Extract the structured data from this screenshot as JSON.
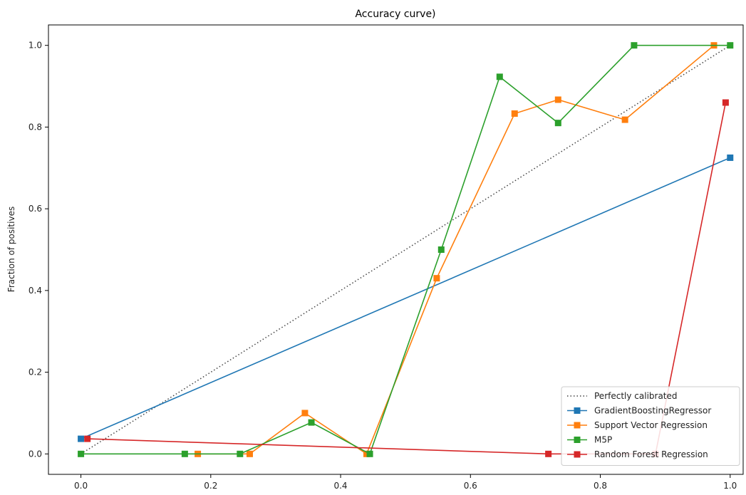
{
  "chart_data": {
    "type": "line",
    "title": "Accuracy curve)",
    "xlabel": "",
    "ylabel": "Fraction of positives",
    "xlim": [
      -0.05,
      1.02
    ],
    "ylim": [
      -0.05,
      1.05
    ],
    "xticks": [
      0.0,
      0.2,
      0.4,
      0.6,
      0.8,
      1.0
    ],
    "xtick_labels": [
      "0.0",
      "0.2",
      "0.4",
      "0.6",
      "0.8",
      "1.0"
    ],
    "yticks": [
      0.0,
      0.2,
      0.4,
      0.6,
      0.8,
      1.0
    ],
    "ytick_labels": [
      "0.0",
      "0.2",
      "0.4",
      "0.6",
      "0.8",
      "1.0"
    ],
    "grid": false,
    "legend_position": "bottom-right",
    "reference": {
      "name": "Perfectly calibrated",
      "x": [
        0,
        1
      ],
      "y": [
        0,
        1
      ],
      "style": "dotted",
      "color": "#444444"
    },
    "series": [
      {
        "name": "GradientBoostingRegressor",
        "color": "#1f77b4",
        "marker": "square",
        "x": [
          0.0,
          1.0
        ],
        "y": [
          0.037,
          0.725
        ]
      },
      {
        "name": "Support Vector Regression",
        "color": "#ff7f0e",
        "marker": "square",
        "x": [
          0.18,
          0.26,
          0.345,
          0.44,
          0.548,
          0.668,
          0.735,
          0.838,
          0.975
        ],
        "y": [
          0.0,
          0.0,
          0.1,
          0.0,
          0.43,
          0.833,
          0.867,
          0.818,
          1.0
        ]
      },
      {
        "name": "M5P",
        "color": "#2ca02c",
        "marker": "square",
        "x": [
          0.0,
          0.16,
          0.245,
          0.355,
          0.445,
          0.555,
          0.645,
          0.735,
          0.852,
          1.0
        ],
        "y": [
          0.0,
          0.0,
          0.0,
          0.077,
          0.0,
          0.5,
          0.923,
          0.81,
          1.0,
          1.0
        ]
      },
      {
        "name": "Random Forest Regression",
        "color": "#d62728",
        "marker": "square",
        "x": [
          0.01,
          0.72,
          0.885,
          0.993
        ],
        "y": [
          0.037,
          0.0,
          0.0,
          0.86
        ]
      }
    ]
  }
}
